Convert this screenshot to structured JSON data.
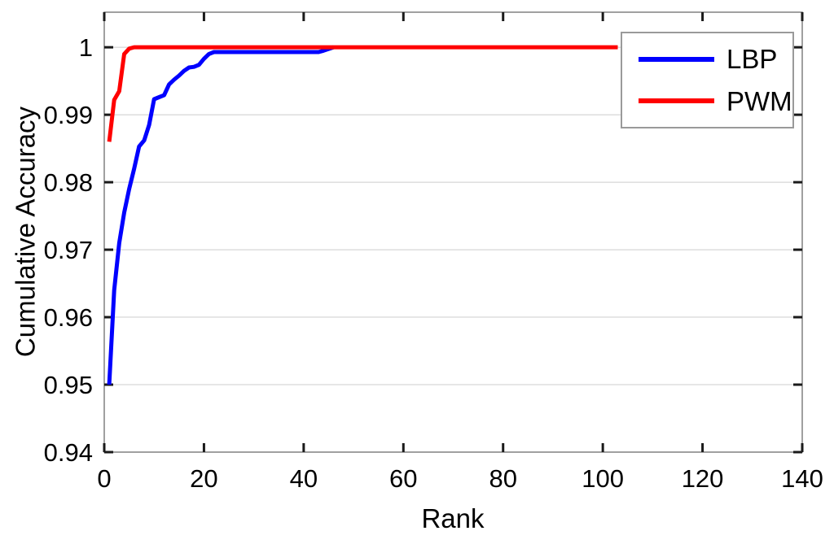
{
  "chart_data": {
    "type": "line",
    "title": "",
    "xlabel": "Rank",
    "ylabel": "Cumulative Accuracy",
    "xlim": [
      0,
      140
    ],
    "ylim": [
      0.94,
      1.0052
    ],
    "xticks": [
      0,
      20,
      40,
      60,
      80,
      100,
      120,
      140
    ],
    "xtick_labels": [
      "0",
      "20",
      "40",
      "60",
      "80",
      "100",
      "120",
      "140"
    ],
    "yticks": [
      0.94,
      0.95,
      0.96,
      0.97,
      0.98,
      0.99,
      1.0
    ],
    "ytick_labels": [
      "0.94",
      "0.95",
      "0.96",
      "0.97",
      "0.98",
      "0.99",
      "1"
    ],
    "grid": "horizontal-only",
    "legend": {
      "position": "top-right",
      "entries": [
        {
          "label": "LBP",
          "color": "#0000ff"
        },
        {
          "label": "PWM",
          "color": "#ff0000"
        }
      ]
    },
    "series": [
      {
        "name": "LBP",
        "color": "#0000ff",
        "points": [
          [
            1,
            0.95
          ],
          [
            2,
            0.964
          ],
          [
            3,
            0.971
          ],
          [
            4,
            0.9755
          ],
          [
            5,
            0.979
          ],
          [
            6,
            0.982
          ],
          [
            7,
            0.9853
          ],
          [
            8,
            0.9862
          ],
          [
            9,
            0.9885
          ],
          [
            10,
            0.9923
          ],
          [
            11,
            0.9926
          ],
          [
            12,
            0.9929
          ],
          [
            13,
            0.9945
          ],
          [
            14,
            0.9952
          ],
          [
            15,
            0.9958
          ],
          [
            16,
            0.9965
          ],
          [
            17,
            0.997
          ],
          [
            18,
            0.9971
          ],
          [
            19,
            0.9974
          ],
          [
            20,
            0.9983
          ],
          [
            21,
            0.999
          ],
          [
            22,
            0.9993
          ],
          [
            43,
            0.9993
          ],
          [
            44,
            0.9995
          ],
          [
            46,
            1.0
          ]
        ]
      },
      {
        "name": "PWM",
        "color": "#ff0000",
        "points": [
          [
            1,
            0.986
          ],
          [
            2,
            0.9922
          ],
          [
            3,
            0.9935
          ],
          [
            4,
            0.999
          ],
          [
            5,
            0.9998
          ],
          [
            6,
            1.0
          ],
          [
            103,
            1.0
          ]
        ]
      }
    ]
  },
  "colors": {
    "background": "#ffffff",
    "grid": "#cccccc",
    "box": "#808080",
    "tick": "#1a1a1a",
    "text": "#000000",
    "legend_border": "#9a9a9a",
    "lbp_blue": "#0000ff",
    "pwm_red": "#ff0000"
  }
}
